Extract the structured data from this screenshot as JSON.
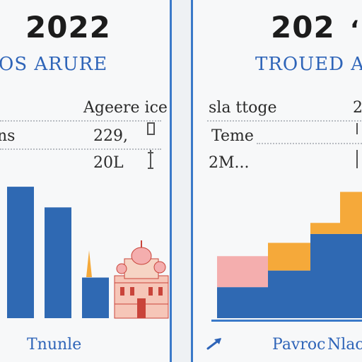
{
  "left_panel": {
    "year": "2022",
    "heading": "OS ARURE",
    "rows": [
      {
        "label": "",
        "value": "Ageere ice"
      },
      {
        "label": "ns",
        "value": "229,"
      },
      {
        "label": "",
        "value": "20L"
      }
    ],
    "footer": "Tnunle"
  },
  "right_panel": {
    "year": "202",
    "heading": "TROUED A",
    "rows": [
      {
        "label": "sla ttoge",
        "value": "2"
      },
      {
        "label": "Teme",
        "value": ""
      },
      {
        "label": "2M...",
        "value": ""
      }
    ],
    "footer_left": "Pavroc",
    "footer_right": "Nlac"
  },
  "chart_data": [
    {
      "type": "bar",
      "title": "",
      "categories": [
        "",
        "",
        ""
      ],
      "values": [
        178,
        150,
        55
      ],
      "ylim": [
        0,
        180
      ],
      "colors": [
        "#2f69b3"
      ]
    },
    {
      "type": "bar",
      "title": "",
      "stacked": true,
      "categories": [
        "",
        "",
        "",
        ""
      ],
      "series": [
        {
          "name": "",
          "color": "#2f69b3",
          "values": [
            28,
            43,
            76,
            76
          ]
        },
        {
          "name": "",
          "color": "#f5a93a",
          "values": [
            0,
            25,
            10,
            38
          ]
        },
        {
          "name": "",
          "color": "#f4aeae",
          "values": [
            28,
            0,
            0,
            0
          ]
        }
      ],
      "ylim": [
        0,
        120
      ]
    }
  ],
  "colors": {
    "accent": "#3a79c9",
    "bar_blue": "#2f69b3",
    "bar_orange": "#f5a93a",
    "bar_pink": "#f4aeae"
  },
  "icons": {
    "left_side_marks": "tick-marks-icon",
    "right_arrow": "arrow-icon",
    "building": "building-illustration"
  }
}
